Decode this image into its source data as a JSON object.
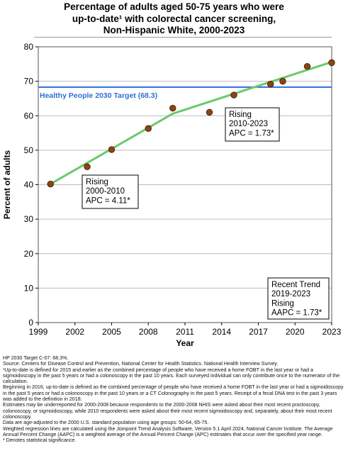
{
  "title_lines": [
    "Percentage of adults aged 50-75 years who were",
    "up-to-date¹ with colorectal cancer screening,",
    "Non-Hispanic White,  2000-2023"
  ],
  "chart_data": {
    "type": "scatter",
    "xlabel": "Year",
    "ylabel": "Percent of adults",
    "xlim": [
      1999,
      2023
    ],
    "ylim": [
      0,
      80
    ],
    "x_ticks": [
      1999,
      2002,
      2005,
      2008,
      2011,
      2014,
      2017,
      2020,
      2023
    ],
    "y_ticks": [
      0,
      10,
      20,
      30,
      40,
      50,
      60,
      70,
      80
    ],
    "grid": "horizontal",
    "observed": {
      "x": [
        2000,
        2003,
        2005,
        2008,
        2010,
        2013,
        2015,
        2018,
        2019,
        2021,
        2023
      ],
      "y": [
        40.2,
        45.2,
        50.2,
        56.3,
        62.2,
        61.0,
        66.0,
        69.2,
        70.0,
        74.3,
        75.4
      ]
    },
    "trend": {
      "x": [
        2000,
        2010,
        2023
      ],
      "y": [
        40.2,
        60.6,
        75.6
      ]
    },
    "target": {
      "value": 68.3,
      "label": "Healthy People 2030 Target (68.3)"
    },
    "annotations": [
      {
        "lines": [
          "Rising",
          "2000-2010",
          "APC =  4.11*"
        ],
        "anchor": "bottom-left"
      },
      {
        "lines": [
          "Rising",
          "2010-2023",
          "APC =  1.73*"
        ],
        "anchor": "middle-right"
      },
      {
        "lines": [
          "Recent Trend",
          "2019-2023",
          "Rising",
          "AAPC =  1.73*"
        ],
        "anchor": "lower-right"
      }
    ],
    "colors": {
      "target": "#2f6fd6",
      "trend": "#6cc96b",
      "marker": "#8b4513",
      "grid": "#bdbdbd",
      "plot_border": "#555555"
    }
  },
  "footnotes": [
    "HP 2030 Target C-07: 68.3%.",
    "Source: Centers for Disease Control and Prevention, National Center for Health Statistics. National Health Interview Survey.",
    "¹Up-to-date is defined for 2015 and earlier as the combined percentage of people who have received a home FOBT in the last year or had a sigmoidoscopy in the past 5 years or had a colonoscopy in the past 10 years. Each surveyed individual can only contribute once to the numerator of the calculation.",
    "Beginning in 2016, up-to-date is defined as the combined percentage of people who have received a home FOBT in the last year or had a sigmoidoscopy in the past 5 years or had a colonoscopy in the past 10 years or a CT Colonography in the past 5 years. Receipt of a fecal DNA test in the past 3 years was added to the definition in 2018.",
    "Estimates may be underreported for 2000-2008 because respondents to the 2000-2008 NHIS were asked about their most recent proctoscopy, colonoscopy, or sigmoidoscopy, while 2010 respondents were asked about their most recent sigmoidoscopy and, separately, about their most recent colonoscopy.",
    "Data are age-adjusted to the 2000 U.S. standard population using age groups: 50-64, 65-75.",
    "Weighted regression lines are calculated using the Joinpoint Trend Analysis Software, Version 5.1 April 2024, National Cancer Institute. The Average Annual Percent Change (AAPC) is a weighted average of the Annual Percent Change (APC) estimates that occur over the specified year range.",
    "* Denotes statistical significance."
  ]
}
